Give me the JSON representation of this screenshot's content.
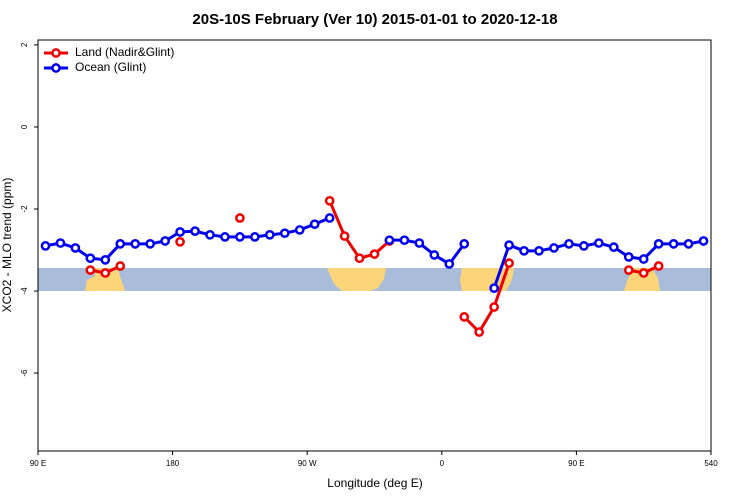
{
  "chart_data": {
    "type": "line",
    "title": "20S-10S February (Ver 10)   2015-01-01 to 2020-12-18",
    "x_label": "Longitude (deg E)",
    "y_label": "XCO2 - MLO trend (ppm)",
    "x": [
      95,
      105,
      115,
      125,
      135,
      145,
      155,
      165,
      175,
      185,
      195,
      205,
      215,
      225,
      235,
      245,
      255,
      265,
      275,
      285,
      295,
      305,
      315,
      325,
      335,
      345,
      355,
      365,
      375,
      385,
      395,
      405,
      415,
      425,
      435,
      445,
      455,
      465,
      475,
      485,
      495,
      505,
      515,
      525,
      535
    ],
    "series": [
      {
        "name": "Land (Nadir&Glint)",
        "color": "#ee0000",
        "values": [
          null,
          null,
          null,
          -3.49,
          -3.56,
          -3.39,
          null,
          null,
          null,
          -2.8,
          null,
          null,
          null,
          -2.22,
          null,
          null,
          null,
          null,
          null,
          -1.8,
          -2.66,
          -3.2,
          -3.1,
          -2.78,
          null,
          null,
          null,
          null,
          -4.63,
          -5.0,
          -4.39,
          -3.32,
          null,
          null,
          null,
          null,
          null,
          null,
          null,
          -3.49,
          -3.56,
          -3.39,
          null,
          null,
          null
        ]
      },
      {
        "name": "Ocean (Glint)",
        "color": "#0000ee",
        "values": [
          -2.9,
          -2.83,
          -2.95,
          -3.2,
          -3.24,
          -2.85,
          -2.85,
          -2.85,
          -2.78,
          -2.56,
          -2.54,
          -2.63,
          -2.68,
          -2.68,
          -2.68,
          -2.63,
          -2.59,
          -2.51,
          -2.37,
          -2.22,
          null,
          null,
          null,
          -2.76,
          -2.76,
          -2.83,
          -3.12,
          -3.34,
          -2.85,
          null,
          -3.93,
          -2.88,
          -3.02,
          -3.02,
          -2.95,
          -2.85,
          -2.9,
          -2.83,
          -2.93,
          -3.17,
          -3.22,
          -2.85,
          -2.85,
          -2.85,
          -2.78
        ]
      }
    ],
    "xlim": [
      90,
      540
    ],
    "xticks": [
      {
        "value": 90,
        "label": "90 E"
      },
      180,
      {
        "value": 270,
        "label": "90 W"
      },
      {
        "value": 360,
        "label": "0"
      },
      {
        "value": 450,
        "label": "90 E"
      },
      540
    ],
    "ylim": [
      -7.9,
      2.12
    ],
    "yticks": [
      2,
      0,
      -2,
      -4,
      -6
    ],
    "legend": "top-left"
  }
}
